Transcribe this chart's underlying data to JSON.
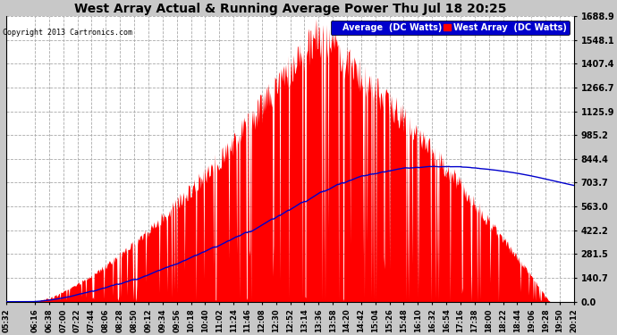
{
  "title": "West Array Actual & Running Average Power Thu Jul 18 20:25",
  "copyright": "Copyright 2013 Cartronics.com",
  "legend_avg": "Average  (DC Watts)",
  "legend_west": "West Array  (DC Watts)",
  "y_max": 1688.9,
  "y_ticks": [
    0.0,
    140.7,
    281.5,
    422.2,
    563.0,
    703.7,
    844.4,
    985.2,
    1125.9,
    1266.7,
    1407.4,
    1548.1,
    1688.9
  ],
  "background_color": "#c8c8c8",
  "plot_bg_color": "#ffffff",
  "bar_color": "#ff0000",
  "avg_line_color": "#0000cc",
  "grid_color": "#aaaaaa",
  "title_color": "#000000",
  "x_start_minutes": 332,
  "x_end_minutes": 1212,
  "tick_labels": [
    "05:32",
    "06:16",
    "06:38",
    "07:00",
    "07:22",
    "07:44",
    "08:06",
    "08:28",
    "08:50",
    "09:12",
    "09:34",
    "09:56",
    "10:18",
    "10:40",
    "11:02",
    "11:24",
    "11:46",
    "12:08",
    "12:30",
    "12:52",
    "13:14",
    "13:36",
    "13:58",
    "14:20",
    "14:42",
    "15:04",
    "15:26",
    "15:48",
    "16:10",
    "16:32",
    "16:54",
    "17:16",
    "17:38",
    "18:00",
    "18:22",
    "18:44",
    "19:06",
    "19:28",
    "19:50",
    "20:12"
  ],
  "x_tick_minutes": [
    332,
    376,
    398,
    420,
    442,
    464,
    486,
    508,
    530,
    552,
    574,
    596,
    618,
    640,
    662,
    684,
    706,
    728,
    750,
    772,
    794,
    816,
    838,
    860,
    882,
    904,
    926,
    948,
    970,
    992,
    1014,
    1036,
    1058,
    1080,
    1102,
    1124,
    1146,
    1168,
    1190,
    1212
  ]
}
